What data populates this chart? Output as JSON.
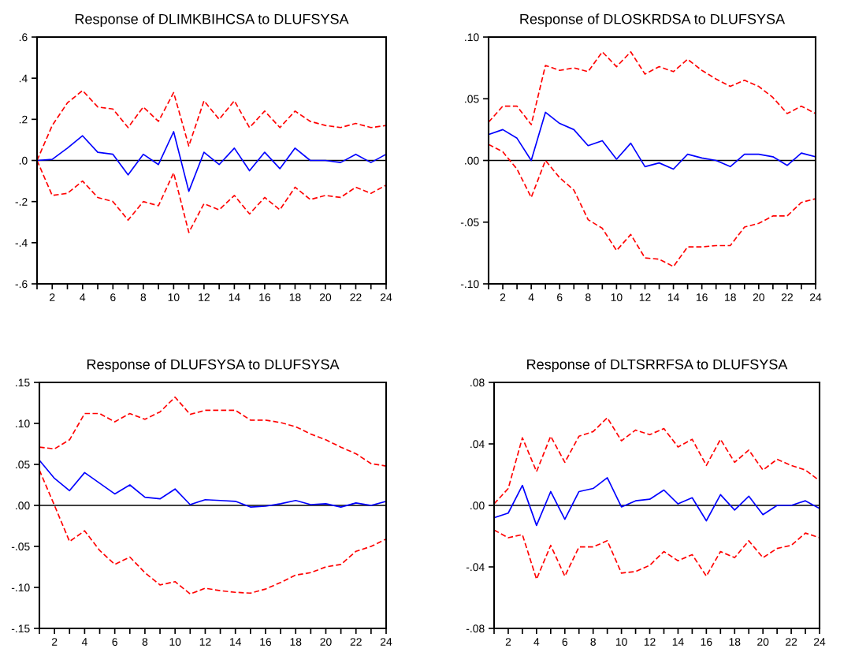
{
  "chart_data": [
    {
      "type": "line",
      "title": "Response of DLIMKBIHCSA to DLUFSYSA",
      "x": [
        1,
        2,
        3,
        4,
        5,
        6,
        7,
        8,
        9,
        10,
        11,
        12,
        13,
        14,
        15,
        16,
        17,
        18,
        19,
        20,
        21,
        22,
        23,
        24
      ],
      "xlim": [
        1,
        24
      ],
      "xticks": [
        {
          "value": 1,
          "label": null
        },
        2,
        {
          "value": 3,
          "label": null
        },
        4,
        {
          "value": 5,
          "label": null
        },
        6,
        {
          "value": 7,
          "label": null
        },
        8,
        {
          "value": 9,
          "label": null
        },
        10,
        {
          "value": 11,
          "label": null
        },
        12,
        {
          "value": 13,
          "label": null
        },
        14,
        {
          "value": 15,
          "label": null
        },
        16,
        {
          "value": 17,
          "label": null
        },
        18,
        {
          "value": 19,
          "label": null
        },
        20,
        {
          "value": 21,
          "label": null
        },
        22,
        {
          "value": 23,
          "label": null
        },
        24
      ],
      "ylim": [
        -0.6,
        0.6
      ],
      "yticks": [
        {
          "value": -0.6,
          "label": "-.6"
        },
        {
          "value": -0.4,
          "label": "-.4"
        },
        {
          "value": -0.2,
          "label": "-.2"
        },
        {
          "value": 0,
          "label": ".0"
        },
        {
          "value": 0.2,
          "label": ".2"
        },
        {
          "value": 0.4,
          "label": ".4"
        },
        {
          "value": 0.6,
          "label": ".6"
        }
      ],
      "ref_lines": [
        {
          "axis": "y",
          "value": 0,
          "color": "#000000"
        }
      ],
      "grid": false,
      "legend": false,
      "series": [
        {
          "color": "#0000ff",
          "line_style": "solid",
          "values": [
            0,
            0.005,
            0.06,
            0.12,
            0.04,
            0.03,
            -0.07,
            0.03,
            -0.02,
            0.14,
            -0.15,
            0.04,
            -0.02,
            0.06,
            -0.05,
            0.04,
            -0.04,
            0.06,
            0.0,
            0.0,
            -0.01,
            0.03,
            -0.01,
            0.03
          ]
        },
        {
          "color": "#ff0000",
          "line_style": "dashed",
          "values": [
            0,
            0.17,
            0.28,
            0.34,
            0.26,
            0.25,
            0.16,
            0.26,
            0.19,
            0.33,
            0.07,
            0.29,
            0.2,
            0.29,
            0.16,
            0.24,
            0.16,
            0.24,
            0.19,
            0.17,
            0.16,
            0.18,
            0.16,
            0.17
          ]
        },
        {
          "color": "#ff0000",
          "line_style": "dashed",
          "values": [
            0,
            -0.17,
            -0.16,
            -0.1,
            -0.18,
            -0.2,
            -0.29,
            -0.2,
            -0.22,
            -0.06,
            -0.35,
            -0.21,
            -0.24,
            -0.17,
            -0.26,
            -0.18,
            -0.24,
            -0.13,
            -0.19,
            -0.17,
            -0.18,
            -0.13,
            -0.16,
            -0.12
          ]
        }
      ]
    },
    {
      "type": "line",
      "title": "Response of DLOSKRDSA to DLUFSYSA",
      "x": [
        1,
        2,
        3,
        4,
        5,
        6,
        7,
        8,
        9,
        10,
        11,
        12,
        13,
        14,
        15,
        16,
        17,
        18,
        19,
        20,
        21,
        22,
        23,
        24
      ],
      "xlim": [
        1,
        24
      ],
      "xticks": [
        {
          "value": 1,
          "label": null
        },
        2,
        {
          "value": 3,
          "label": null
        },
        4,
        {
          "value": 5,
          "label": null
        },
        6,
        {
          "value": 7,
          "label": null
        },
        8,
        {
          "value": 9,
          "label": null
        },
        10,
        {
          "value": 11,
          "label": null
        },
        12,
        {
          "value": 13,
          "label": null
        },
        14,
        {
          "value": 15,
          "label": null
        },
        16,
        {
          "value": 17,
          "label": null
        },
        18,
        {
          "value": 19,
          "label": null
        },
        20,
        {
          "value": 21,
          "label": null
        },
        22,
        {
          "value": 23,
          "label": null
        },
        24
      ],
      "ylim": [
        -0.1,
        0.1
      ],
      "yticks": [
        {
          "value": -0.1,
          "label": "-.10"
        },
        {
          "value": -0.05,
          "label": "-.05"
        },
        {
          "value": 0,
          "label": ".00"
        },
        {
          "value": 0.05,
          "label": ".05"
        },
        {
          "value": 0.1,
          "label": ".10"
        }
      ],
      "ref_lines": [
        {
          "axis": "y",
          "value": 0,
          "color": "#000000"
        }
      ],
      "grid": false,
      "legend": false,
      "series": [
        {
          "color": "#0000ff",
          "line_style": "solid",
          "values": [
            0.021,
            0.025,
            0.018,
            0.0,
            0.039,
            0.03,
            0.025,
            0.012,
            0.016,
            0.001,
            0.014,
            -0.005,
            -0.002,
            -0.007,
            0.005,
            0.002,
            0.0,
            -0.005,
            0.005,
            0.005,
            0.003,
            -0.004,
            0.006,
            0.003
          ]
        },
        {
          "color": "#ff0000",
          "line_style": "dashed",
          "values": [
            0.031,
            0.044,
            0.044,
            0.029,
            0.077,
            0.073,
            0.075,
            0.072,
            0.088,
            0.076,
            0.088,
            0.07,
            0.076,
            0.072,
            0.082,
            0.073,
            0.066,
            0.06,
            0.065,
            0.06,
            0.051,
            0.038,
            0.044,
            0.038
          ]
        },
        {
          "color": "#ff0000",
          "line_style": "dashed",
          "values": [
            0.013,
            0.007,
            -0.007,
            -0.03,
            0.0,
            -0.014,
            -0.024,
            -0.048,
            -0.055,
            -0.073,
            -0.06,
            -0.079,
            -0.08,
            -0.086,
            -0.07,
            -0.07,
            -0.069,
            -0.069,
            -0.054,
            -0.051,
            -0.045,
            -0.045,
            -0.034,
            -0.031
          ]
        }
      ]
    },
    {
      "type": "line",
      "title": "Response of DLUFSYSA to DLUFSYSA",
      "x": [
        1,
        2,
        3,
        4,
        5,
        6,
        7,
        8,
        9,
        10,
        11,
        12,
        13,
        14,
        15,
        16,
        17,
        18,
        19,
        20,
        21,
        22,
        23,
        24
      ],
      "xlim": [
        1,
        24
      ],
      "xticks": [
        {
          "value": 1,
          "label": null
        },
        2,
        {
          "value": 3,
          "label": null
        },
        4,
        {
          "value": 5,
          "label": null
        },
        6,
        {
          "value": 7,
          "label": null
        },
        8,
        {
          "value": 9,
          "label": null
        },
        10,
        {
          "value": 11,
          "label": null
        },
        12,
        {
          "value": 13,
          "label": null
        },
        14,
        {
          "value": 15,
          "label": null
        },
        16,
        {
          "value": 17,
          "label": null
        },
        18,
        {
          "value": 19,
          "label": null
        },
        20,
        {
          "value": 21,
          "label": null
        },
        22,
        {
          "value": 23,
          "label": null
        },
        24
      ],
      "ylim": [
        -0.15,
        0.15
      ],
      "yticks": [
        {
          "value": -0.15,
          "label": "-.15"
        },
        {
          "value": -0.1,
          "label": "-.10"
        },
        {
          "value": -0.05,
          "label": "-.05"
        },
        {
          "value": 0,
          "label": ".00"
        },
        {
          "value": 0.05,
          "label": ".05"
        },
        {
          "value": 0.1,
          "label": ".10"
        },
        {
          "value": 0.15,
          "label": ".15"
        }
      ],
      "ref_lines": [
        {
          "axis": "y",
          "value": 0,
          "color": "#000000"
        }
      ],
      "grid": false,
      "legend": false,
      "series": [
        {
          "color": "#0000ff",
          "line_style": "solid",
          "values": [
            0.055,
            0.033,
            0.018,
            0.04,
            0.027,
            0.014,
            0.025,
            0.01,
            0.008,
            0.02,
            0.001,
            0.007,
            0.006,
            0.005,
            -0.002,
            -0.001,
            0.002,
            0.006,
            0.001,
            0.002,
            -0.002,
            0.003,
            0.0,
            0.005
          ]
        },
        {
          "color": "#ff0000",
          "line_style": "dashed",
          "values": [
            0.071,
            0.069,
            0.08,
            0.112,
            0.112,
            0.102,
            0.112,
            0.105,
            0.114,
            0.132,
            0.111,
            0.116,
            0.116,
            0.116,
            0.104,
            0.104,
            0.101,
            0.096,
            0.087,
            0.08,
            0.071,
            0.063,
            0.051,
            0.048
          ]
        },
        {
          "color": "#ff0000",
          "line_style": "dashed",
          "values": [
            0.043,
            0.0,
            -0.044,
            -0.031,
            -0.055,
            -0.072,
            -0.063,
            -0.082,
            -0.097,
            -0.093,
            -0.108,
            -0.101,
            -0.104,
            -0.106,
            -0.107,
            -0.102,
            -0.094,
            -0.085,
            -0.082,
            -0.075,
            -0.072,
            -0.056,
            -0.05,
            -0.041
          ]
        }
      ]
    },
    {
      "type": "line",
      "title": "Response of DLTSRRFSA to DLUFSYSA",
      "x": [
        1,
        2,
        3,
        4,
        5,
        6,
        7,
        8,
        9,
        10,
        11,
        12,
        13,
        14,
        15,
        16,
        17,
        18,
        19,
        20,
        21,
        22,
        23,
        24
      ],
      "xlim": [
        1,
        24
      ],
      "xticks": [
        {
          "value": 1,
          "label": null
        },
        2,
        {
          "value": 3,
          "label": null
        },
        4,
        {
          "value": 5,
          "label": null
        },
        6,
        {
          "value": 7,
          "label": null
        },
        8,
        {
          "value": 9,
          "label": null
        },
        10,
        {
          "value": 11,
          "label": null
        },
        12,
        {
          "value": 13,
          "label": null
        },
        14,
        {
          "value": 15,
          "label": null
        },
        16,
        {
          "value": 17,
          "label": null
        },
        18,
        {
          "value": 19,
          "label": null
        },
        20,
        {
          "value": 21,
          "label": null
        },
        22,
        {
          "value": 23,
          "label": null
        },
        24
      ],
      "ylim": [
        -0.08,
        0.08
      ],
      "yticks": [
        {
          "value": -0.08,
          "label": "-.08"
        },
        {
          "value": -0.04,
          "label": "-.04"
        },
        {
          "value": 0,
          "label": ".00"
        },
        {
          "value": 0.04,
          "label": ".04"
        },
        {
          "value": 0.08,
          "label": ".08"
        }
      ],
      "ref_lines": [
        {
          "axis": "y",
          "value": 0,
          "color": "#000000"
        }
      ],
      "grid": false,
      "legend": false,
      "series": [
        {
          "color": "#0000ff",
          "line_style": "solid",
          "values": [
            -0.008,
            -0.005,
            0.013,
            -0.013,
            0.009,
            -0.009,
            0.009,
            0.011,
            0.018,
            -0.001,
            0.003,
            0.004,
            0.01,
            0.001,
            0.005,
            -0.01,
            0.007,
            -0.003,
            0.006,
            -0.006,
            0.0,
            0.0,
            0.003,
            -0.002
          ]
        },
        {
          "color": "#ff0000",
          "line_style": "dashed",
          "values": [
            0.001,
            0.011,
            0.044,
            0.022,
            0.045,
            0.028,
            0.045,
            0.048,
            0.057,
            0.042,
            0.049,
            0.046,
            0.05,
            0.038,
            0.043,
            0.026,
            0.043,
            0.028,
            0.036,
            0.023,
            0.03,
            0.026,
            0.023,
            0.016
          ]
        },
        {
          "color": "#ff0000",
          "line_style": "dashed",
          "values": [
            -0.016,
            -0.021,
            -0.019,
            -0.048,
            -0.026,
            -0.046,
            -0.027,
            -0.027,
            -0.023,
            -0.044,
            -0.043,
            -0.039,
            -0.03,
            -0.036,
            -0.032,
            -0.046,
            -0.03,
            -0.034,
            -0.023,
            -0.034,
            -0.028,
            -0.026,
            -0.018,
            -0.021
          ]
        }
      ]
    }
  ]
}
